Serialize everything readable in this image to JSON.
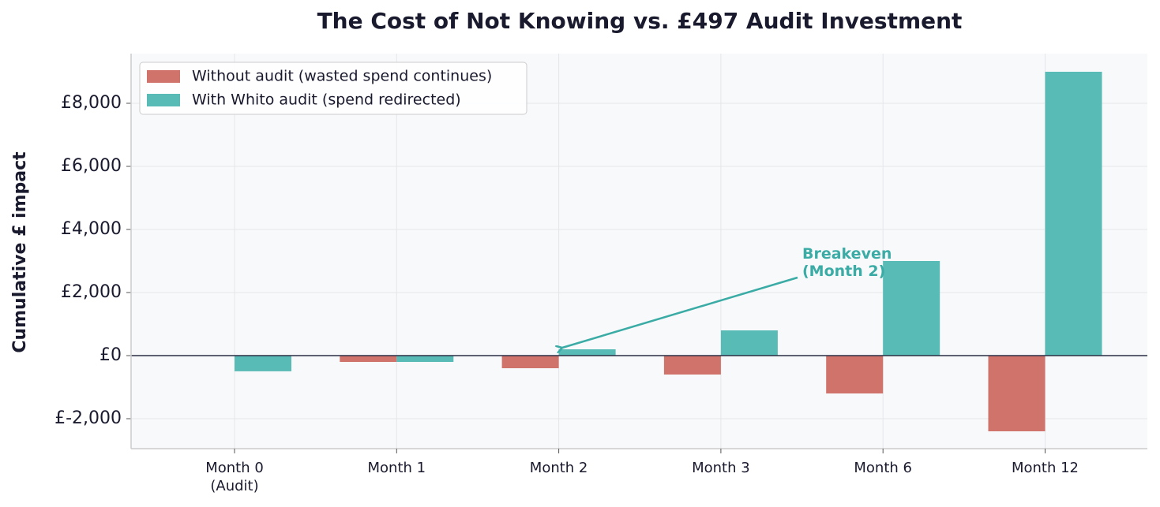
{
  "chart_data": {
    "type": "bar",
    "title": "The Cost of Not Knowing vs. £497 Audit Investment",
    "ylabel": "Cumulative £ impact",
    "categories": [
      "Month 0\n(Audit)",
      "Month 1",
      "Month 2",
      "Month 3",
      "Month 6",
      "Month 12"
    ],
    "series": [
      {
        "name": "Without audit (wasted spend continues)",
        "color": "#d0736a",
        "values": [
          0,
          -200,
          -400,
          -600,
          -1200,
          -2400
        ]
      },
      {
        "name": "With Whito audit (spend redirected)",
        "color": "#58bbb5",
        "values": [
          -497,
          -200,
          200,
          800,
          3000,
          9000
        ]
      }
    ],
    "ylim": [
      -2950,
      9575
    ],
    "yticks": [
      {
        "value": -2000,
        "label": "£-2,000"
      },
      {
        "value": 0,
        "label": "£0"
      },
      {
        "value": 2000,
        "label": "£2,000"
      },
      {
        "value": 4000,
        "label": "£4,000"
      },
      {
        "value": 6000,
        "label": "£6,000"
      },
      {
        "value": 8000,
        "label": "£8,000"
      }
    ],
    "grid": true,
    "legend": "upper left",
    "annotation": {
      "text": "Breakeven\n(Month 2)",
      "category": 2,
      "series": 1,
      "color": "#3aaba5"
    }
  }
}
